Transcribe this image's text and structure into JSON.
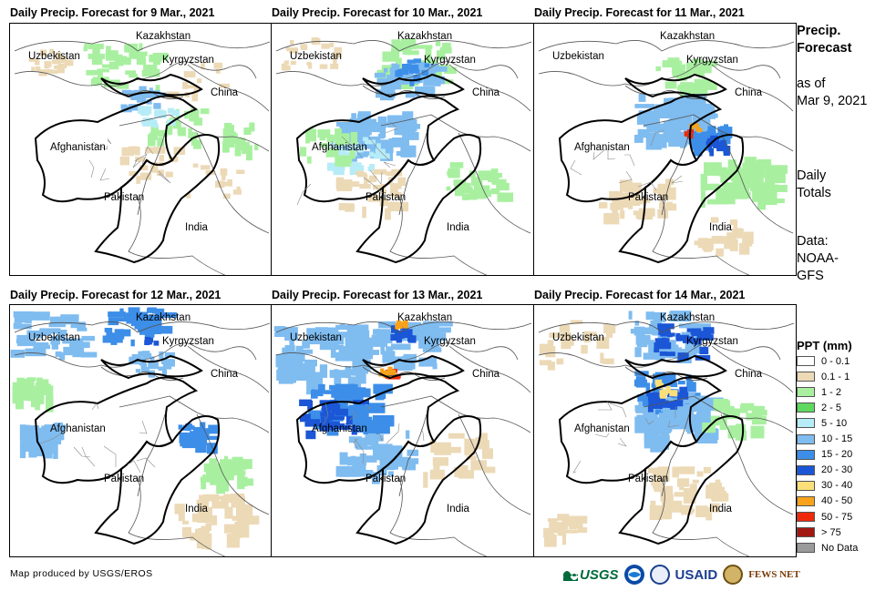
{
  "panels": [
    {
      "title": "Daily Precip. Forecast for 9 Mar., 2021"
    },
    {
      "title": "Daily Precip. Forecast for 10 Mar., 2021"
    },
    {
      "title": "Daily Precip. Forecast for 11 Mar., 2021"
    },
    {
      "title": "Daily Precip. Forecast for 12 Mar., 2021"
    },
    {
      "title": "Daily Precip. Forecast for 13 Mar., 2021"
    },
    {
      "title": "Daily Precip. Forecast for 14 Mar., 2021"
    }
  ],
  "map_labels": {
    "kazakhstan": "Kazakhstan",
    "uzbekistan": "Uzbekistan",
    "kyrgyzstan": "Kyrgyzstan",
    "china": "China",
    "afghanistan": "Afghanistan",
    "pakistan": "Pakistan",
    "india": "India"
  },
  "sidebar": {
    "heading_line1": "Precip.",
    "heading_line2": "Forecast",
    "asof_line1": "as of",
    "asof_line2": "Mar 9, 2021",
    "daily_line1": "Daily",
    "daily_line2": "Totals",
    "data_line1": "Data:",
    "data_line2": "NOAA-",
    "data_line3": "GFS"
  },
  "legend": {
    "title": "PPT (mm)",
    "items": [
      {
        "label": "0 - 0.1",
        "color": "#ffffff"
      },
      {
        "label": "0.1 - 1",
        "color": "#ecd9b6"
      },
      {
        "label": "1 - 2",
        "color": "#a8f0a0"
      },
      {
        "label": "2 - 5",
        "color": "#5fd860"
      },
      {
        "label": "5 - 10",
        "color": "#b6ecf7"
      },
      {
        "label": "10 - 15",
        "color": "#7fbcf0"
      },
      {
        "label": "15 - 20",
        "color": "#3c8ee8"
      },
      {
        "label": "20 - 30",
        "color": "#1b56d6"
      },
      {
        "label": "30 - 40",
        "color": "#fbe07a"
      },
      {
        "label": "40 - 50",
        "color": "#f7a21a"
      },
      {
        "label": "50 - 75",
        "color": "#ef2a0a"
      },
      {
        "label": "> 75",
        "color": "#a31712"
      },
      {
        "label": "No Data",
        "color": "#9a9a9a"
      }
    ]
  },
  "footer": {
    "credit": "Map produced by USGS/EROS",
    "logo_usgs": "USGS",
    "logo_noaa": "NOAA",
    "logo_usaid": "USAID",
    "logo_fewsnet": "FEWS NET"
  }
}
